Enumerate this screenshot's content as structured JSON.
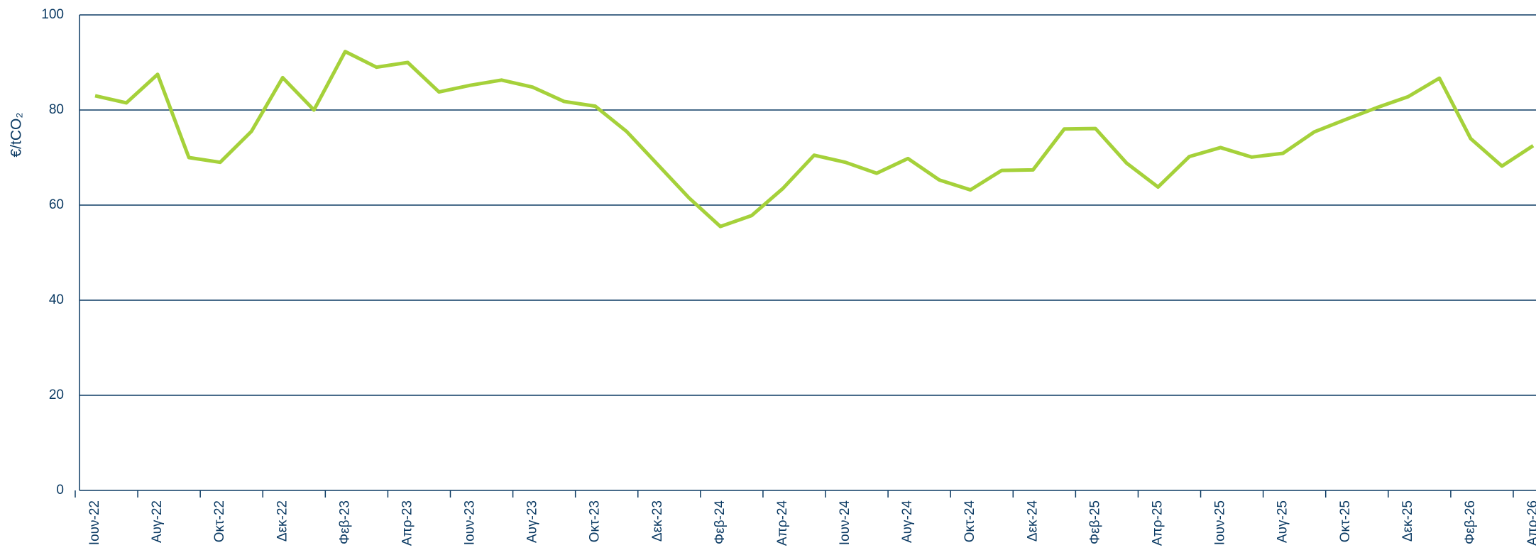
{
  "chart_data": {
    "type": "line",
    "y_label": "€/tCO₂",
    "categories": [
      "Ιουν-22",
      null,
      "Αυγ-22",
      null,
      "Οκτ-22",
      null,
      "Δεκ-22",
      null,
      "Φεβ-23",
      null,
      "Απρ-23",
      null,
      "Ιουν-23",
      null,
      "Αυγ-23",
      null,
      "Οκτ-23",
      null,
      "Δεκ-23",
      null,
      "Φεβ-24",
      null,
      "Απρ-24",
      null,
      "Ιουν-24",
      null,
      "Αυγ-24",
      null,
      "Οκτ-24",
      null,
      "Δεκ-24",
      null,
      "Φεβ-25",
      null,
      "Απρ-25",
      null,
      "Ιουν-25",
      null,
      "Αυγ-25",
      null,
      "Οκτ-25",
      null,
      "Δεκ-25",
      null,
      "Φεβ-26",
      null,
      "Απρ-26"
    ],
    "values": [
      83,
      81.5,
      87.5,
      70,
      69,
      75.5,
      86.8,
      80,
      92.3,
      89,
      90,
      83.8,
      85.2,
      86.3,
      84.8,
      81.8,
      80.8,
      75.5,
      68.5,
      61.5,
      55.5,
      57.8,
      63.5,
      70.5,
      69,
      66.7,
      69.8,
      65.3,
      63.2,
      67.3,
      67.4,
      76,
      76.1,
      68.8,
      63.8,
      70.2,
      72.1,
      70.1,
      70.9,
      75.4,
      78,
      80.5,
      82.8,
      86.7,
      74,
      68.2,
      72.5
    ],
    "color": "#a5d13a",
    "ylim": [
      0,
      100
    ],
    "yticks": [
      0,
      20,
      40,
      60,
      80,
      100
    ],
    "grid": true
  }
}
